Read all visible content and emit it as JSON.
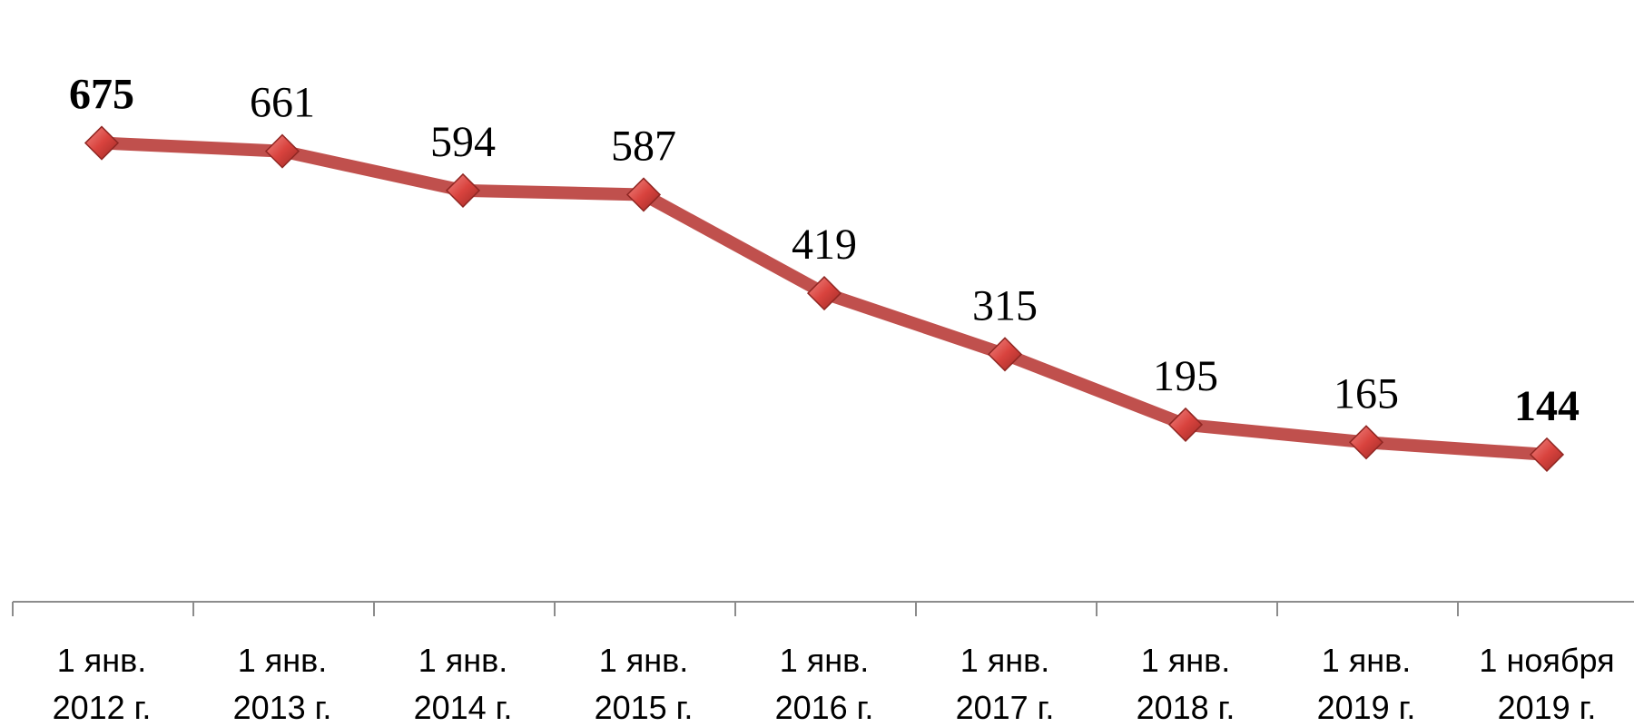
{
  "chart_data": {
    "type": "line",
    "title": "",
    "xlabel": "",
    "ylabel": "",
    "categories": [
      [
        "1 янв.",
        "2012 г."
      ],
      [
        "1 янв.",
        "2013 г."
      ],
      [
        "1 янв.",
        "2014 г."
      ],
      [
        "1 янв.",
        "2015 г."
      ],
      [
        "1 янв.",
        "2016 г."
      ],
      [
        "1 янв.",
        "2017 г."
      ],
      [
        "1 янв.",
        "2018 г."
      ],
      [
        "1 янв.",
        "2019 г."
      ],
      [
        "1 ноября",
        "2019 г."
      ]
    ],
    "series": [
      {
        "values": [
          675,
          661,
          594,
          587,
          419,
          315,
          195,
          165,
          144
        ],
        "color": "#c0504d",
        "marker": "diamond",
        "bold_labels": [
          0,
          8
        ]
      }
    ],
    "ylim": [
      0,
      700
    ],
    "grid": false,
    "legend": "none"
  }
}
